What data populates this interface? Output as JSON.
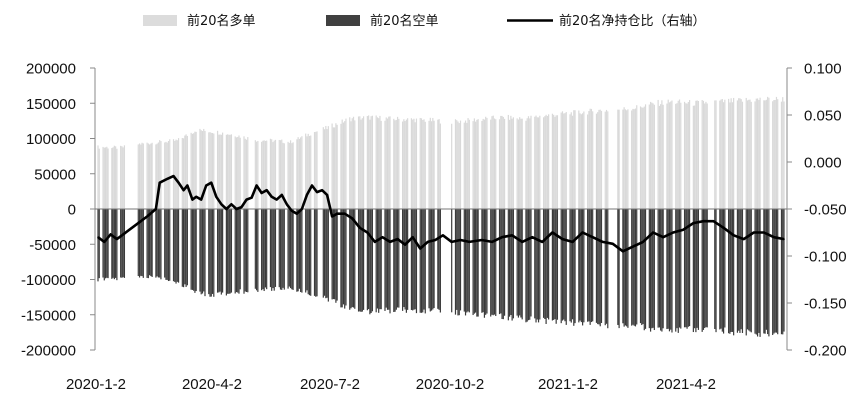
{
  "chart_data": {
    "type": "bar+line",
    "legend": {
      "placement": "top",
      "entries": [
        {
          "label": "前20名多单",
          "color": "#dcdcdc",
          "kind": "bar"
        },
        {
          "label": "前20名空单",
          "color": "#404040",
          "kind": "bar"
        },
        {
          "label": "前20名净持仓比（右轴）",
          "color": "#000000",
          "kind": "line"
        }
      ]
    },
    "x_ticks": [
      "2020-1-2",
      "2020-4-2",
      "2020-7-2",
      "2020-10-2",
      "2021-1-2",
      "2021-4-2"
    ],
    "left_axis": {
      "range": [
        -200000,
        200000
      ],
      "ticks": [
        200000,
        150000,
        100000,
        50000,
        0,
        -50000,
        -100000,
        -150000,
        -200000
      ],
      "tick_labels": [
        "200000",
        "150000",
        "100000",
        "50000",
        "0",
        "-50000",
        "-100000",
        "-150000",
        "-200000"
      ]
    },
    "right_axis": {
      "range": [
        -0.2,
        0.1
      ],
      "ticks": [
        0.1,
        0.05,
        0.0,
        -0.05,
        -0.1,
        -0.15,
        -0.2
      ],
      "tick_labels": [
        "0.100",
        "0.050",
        "0.000",
        "-0.050",
        "-0.100",
        "-0.150",
        "-0.200"
      ]
    },
    "date_range": [
      "2020-01-02",
      "2021-06-30"
    ],
    "long_series": {
      "name": "前20名多单",
      "points": [
        [
          "2020-01-02",
          88000
        ],
        [
          "2020-01-20",
          87000
        ],
        [
          "2020-02-03",
          92000
        ],
        [
          "2020-02-20",
          95000
        ],
        [
          "2020-03-05",
          97000
        ],
        [
          "2020-03-20",
          112000
        ],
        [
          "2020-04-02",
          110000
        ],
        [
          "2020-04-20",
          105000
        ],
        [
          "2020-05-06",
          98000
        ],
        [
          "2020-05-20",
          97000
        ],
        [
          "2020-06-03",
          95000
        ],
        [
          "2020-06-20",
          108000
        ],
        [
          "2020-07-02",
          115000
        ],
        [
          "2020-07-20",
          128000
        ],
        [
          "2020-08-05",
          130000
        ],
        [
          "2020-08-20",
          128000
        ],
        [
          "2020-09-05",
          127000
        ],
        [
          "2020-09-20",
          126000
        ],
        [
          "2020-10-09",
          124000
        ],
        [
          "2020-10-20",
          125000
        ],
        [
          "2020-11-05",
          128000
        ],
        [
          "2020-11-20",
          130000
        ],
        [
          "2020-12-05",
          128000
        ],
        [
          "2020-12-20",
          132000
        ],
        [
          "2021-01-05",
          135000
        ],
        [
          "2021-01-20",
          137000
        ],
        [
          "2021-02-05",
          140000
        ],
        [
          "2021-02-20",
          141000
        ],
        [
          "2021-03-05",
          144000
        ],
        [
          "2021-03-20",
          150000
        ],
        [
          "2021-04-02",
          152000
        ],
        [
          "2021-04-20",
          150000
        ],
        [
          "2021-05-06",
          152000
        ],
        [
          "2021-05-20",
          153000
        ],
        [
          "2021-06-05",
          155000
        ],
        [
          "2021-06-30",
          156000
        ]
      ]
    },
    "short_series": {
      "name": "前20名空单",
      "points": [
        [
          "2020-01-02",
          -100000
        ],
        [
          "2020-01-20",
          -99000
        ],
        [
          "2020-02-03",
          -96000
        ],
        [
          "2020-02-20",
          -97000
        ],
        [
          "2020-03-05",
          -104000
        ],
        [
          "2020-03-20",
          -118000
        ],
        [
          "2020-04-02",
          -122000
        ],
        [
          "2020-04-20",
          -118000
        ],
        [
          "2020-05-06",
          -115000
        ],
        [
          "2020-05-20",
          -113000
        ],
        [
          "2020-06-03",
          -112000
        ],
        [
          "2020-06-20",
          -120000
        ],
        [
          "2020-07-02",
          -127000
        ],
        [
          "2020-07-20",
          -142000
        ],
        [
          "2020-08-05",
          -145000
        ],
        [
          "2020-08-20",
          -144000
        ],
        [
          "2020-09-05",
          -143000
        ],
        [
          "2020-09-20",
          -144000
        ],
        [
          "2020-10-09",
          -146000
        ],
        [
          "2020-10-20",
          -148000
        ],
        [
          "2020-11-05",
          -150000
        ],
        [
          "2020-11-20",
          -153000
        ],
        [
          "2020-12-05",
          -156000
        ],
        [
          "2020-12-20",
          -158000
        ],
        [
          "2021-01-05",
          -160000
        ],
        [
          "2021-01-20",
          -162000
        ],
        [
          "2021-02-05",
          -164000
        ],
        [
          "2021-02-20",
          -165000
        ],
        [
          "2021-03-05",
          -166000
        ],
        [
          "2021-03-20",
          -170000
        ],
        [
          "2021-04-02",
          -172000
        ],
        [
          "2021-04-20",
          -171000
        ],
        [
          "2021-05-06",
          -172000
        ],
        [
          "2021-05-20",
          -174000
        ],
        [
          "2021-06-05",
          -176000
        ],
        [
          "2021-06-30",
          -177000
        ]
      ]
    },
    "ratio_series": {
      "name": "前20名净持仓比（右轴）",
      "points": [
        [
          "2020-01-02",
          -0.08
        ],
        [
          "2020-01-07",
          -0.085
        ],
        [
          "2020-01-12",
          -0.077
        ],
        [
          "2020-01-17",
          -0.082
        ],
        [
          "2020-01-22",
          -0.077
        ],
        [
          "2020-02-03",
          -0.065
        ],
        [
          "2020-02-10",
          -0.058
        ],
        [
          "2020-02-17",
          -0.05
        ],
        [
          "2020-02-20",
          -0.022
        ],
        [
          "2020-02-26",
          -0.018
        ],
        [
          "2020-03-02",
          -0.015
        ],
        [
          "2020-03-06",
          -0.022
        ],
        [
          "2020-03-10",
          -0.03
        ],
        [
          "2020-03-13",
          -0.025
        ],
        [
          "2020-03-17",
          -0.04
        ],
        [
          "2020-03-20",
          -0.037
        ],
        [
          "2020-03-24",
          -0.04
        ],
        [
          "2020-03-28",
          -0.025
        ],
        [
          "2020-04-01",
          -0.022
        ],
        [
          "2020-04-05",
          -0.037
        ],
        [
          "2020-04-09",
          -0.045
        ],
        [
          "2020-04-13",
          -0.05
        ],
        [
          "2020-04-17",
          -0.045
        ],
        [
          "2020-04-21",
          -0.05
        ],
        [
          "2020-04-25",
          -0.048
        ],
        [
          "2020-04-29",
          -0.04
        ],
        [
          "2020-05-03",
          -0.038
        ],
        [
          "2020-05-07",
          -0.025
        ],
        [
          "2020-05-11",
          -0.033
        ],
        [
          "2020-05-15",
          -0.03
        ],
        [
          "2020-05-19",
          -0.037
        ],
        [
          "2020-05-23",
          -0.04
        ],
        [
          "2020-05-27",
          -0.035
        ],
        [
          "2020-05-31",
          -0.045
        ],
        [
          "2020-06-04",
          -0.052
        ],
        [
          "2020-06-08",
          -0.055
        ],
        [
          "2020-06-12",
          -0.05
        ],
        [
          "2020-06-16",
          -0.035
        ],
        [
          "2020-06-20",
          -0.025
        ],
        [
          "2020-06-24",
          -0.032
        ],
        [
          "2020-06-28",
          -0.03
        ],
        [
          "2020-07-02",
          -0.035
        ],
        [
          "2020-07-06",
          -0.058
        ],
        [
          "2020-07-10",
          -0.055
        ],
        [
          "2020-07-16",
          -0.055
        ],
        [
          "2020-07-22",
          -0.06
        ],
        [
          "2020-07-28",
          -0.07
        ],
        [
          "2020-08-03",
          -0.075
        ],
        [
          "2020-08-09",
          -0.085
        ],
        [
          "2020-08-15",
          -0.08
        ],
        [
          "2020-08-21",
          -0.085
        ],
        [
          "2020-08-27",
          -0.082
        ],
        [
          "2020-09-02",
          -0.088
        ],
        [
          "2020-09-08",
          -0.08
        ],
        [
          "2020-09-14",
          -0.092
        ],
        [
          "2020-09-20",
          -0.085
        ],
        [
          "2020-09-26",
          -0.083
        ],
        [
          "2020-10-02",
          -0.078
        ],
        [
          "2020-10-09",
          -0.085
        ],
        [
          "2020-10-16",
          -0.083
        ],
        [
          "2020-10-23",
          -0.085
        ],
        [
          "2020-11-02",
          -0.083
        ],
        [
          "2020-11-10",
          -0.085
        ],
        [
          "2020-11-18",
          -0.08
        ],
        [
          "2020-11-26",
          -0.078
        ],
        [
          "2020-12-04",
          -0.085
        ],
        [
          "2020-12-12",
          -0.08
        ],
        [
          "2020-12-20",
          -0.085
        ],
        [
          "2020-12-28",
          -0.075
        ],
        [
          "2021-01-05",
          -0.082
        ],
        [
          "2021-01-13",
          -0.085
        ],
        [
          "2021-01-21",
          -0.075
        ],
        [
          "2021-01-29",
          -0.08
        ],
        [
          "2021-02-06",
          -0.085
        ],
        [
          "2021-02-14",
          -0.087
        ],
        [
          "2021-02-22",
          -0.095
        ],
        [
          "2021-03-02",
          -0.09
        ],
        [
          "2021-03-10",
          -0.085
        ],
        [
          "2021-03-18",
          -0.075
        ],
        [
          "2021-03-26",
          -0.08
        ],
        [
          "2021-04-03",
          -0.075
        ],
        [
          "2021-04-11",
          -0.072
        ],
        [
          "2021-04-19",
          -0.065
        ],
        [
          "2021-04-27",
          -0.063
        ],
        [
          "2021-05-05",
          -0.063
        ],
        [
          "2021-05-13",
          -0.07
        ],
        [
          "2021-05-21",
          -0.078
        ],
        [
          "2021-05-29",
          -0.082
        ],
        [
          "2021-06-06",
          -0.075
        ],
        [
          "2021-06-14",
          -0.075
        ],
        [
          "2021-06-22",
          -0.08
        ],
        [
          "2021-06-30",
          -0.082
        ]
      ]
    }
  }
}
